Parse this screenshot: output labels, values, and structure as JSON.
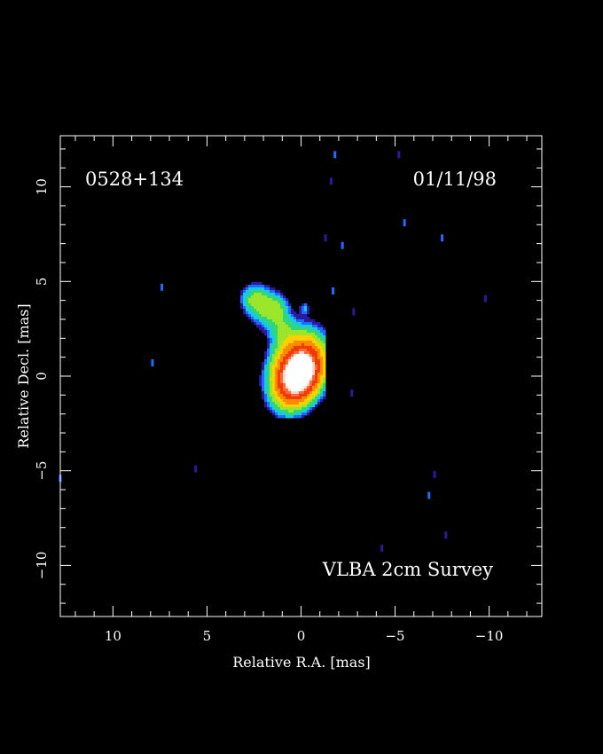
{
  "chart_data": {
    "type": "heatmap",
    "source_name": "0528+134",
    "epoch": "01/11/98",
    "survey_label": "VLBA 2cm Survey",
    "xlabel": "Relative R.A. [mas]",
    "ylabel": "Relative Decl. [mas]",
    "xlim": [
      12.8,
      -12.8
    ],
    "ylim": [
      -12.7,
      12.7
    ],
    "x_ticks": [
      {
        "value": 10,
        "label": "10"
      },
      {
        "value": 5,
        "label": "5"
      },
      {
        "value": 0,
        "label": "0"
      },
      {
        "value": -5,
        "label": "−5"
      },
      {
        "value": -10,
        "label": "−10"
      }
    ],
    "y_ticks": [
      {
        "value": 10,
        "label": "10"
      },
      {
        "value": 5,
        "label": "5"
      },
      {
        "value": 0,
        "label": "0"
      },
      {
        "value": -5,
        "label": "−5"
      },
      {
        "value": -10,
        "label": "−10"
      }
    ],
    "minor_tick_step": 1,
    "grid": false,
    "colors": {
      "background": "#000000",
      "frame": "#ffffff",
      "ramp": [
        "#2a1aa0",
        "#1f6bff",
        "#19c8e8",
        "#2ed87a",
        "#9be62a",
        "#ffd000",
        "#ff8a00",
        "#f03a00",
        "#ff6a3a",
        "#ffd9d0",
        "#ffffff"
      ]
    },
    "source_components": [
      {
        "name": "core",
        "x": 0.05,
        "y": 0.0,
        "sigma_major": 1.05,
        "sigma_minor": 0.72,
        "pa_deg": 25,
        "peak": 1.0
      },
      {
        "name": "core-halo",
        "x": 0.3,
        "y": 0.6,
        "sigma_major": 1.25,
        "sigma_minor": 0.85,
        "pa_deg": 20,
        "peak": 0.55
      },
      {
        "name": "jet-knot-1",
        "x": 1.9,
        "y": 3.6,
        "sigma_major": 0.75,
        "sigma_minor": 0.6,
        "pa_deg": 0,
        "peak": 0.22
      },
      {
        "name": "jet-knot-2",
        "x": 2.6,
        "y": 4.1,
        "sigma_major": 0.55,
        "sigma_minor": 0.5,
        "pa_deg": 0,
        "peak": 0.18
      },
      {
        "name": "jet-knot-3",
        "x": 1.2,
        "y": 3.5,
        "sigma_major": 0.55,
        "sigma_minor": 0.45,
        "pa_deg": 0,
        "peak": 0.15
      },
      {
        "name": "jet-bridge",
        "x": 1.0,
        "y": 2.4,
        "sigma_major": 0.6,
        "sigma_minor": 0.45,
        "pa_deg": 30,
        "peak": 0.13
      },
      {
        "name": "jet-blob",
        "x": -0.2,
        "y": 3.6,
        "sigma_major": 0.25,
        "sigma_minor": 0.2,
        "pa_deg": 0,
        "peak": 0.12
      }
    ],
    "noise_specks": [
      {
        "x": -1.8,
        "y": 11.7,
        "level": 0.1
      },
      {
        "x": -1.6,
        "y": 10.3,
        "level": 0.04
      },
      {
        "x": -5.2,
        "y": 11.7,
        "level": 0.04
      },
      {
        "x": -5.5,
        "y": 8.1,
        "level": 0.1
      },
      {
        "x": -2.2,
        "y": 6.9,
        "level": 0.1
      },
      {
        "x": -1.3,
        "y": 7.3,
        "level": 0.08
      },
      {
        "x": -7.5,
        "y": 7.3,
        "level": 0.1
      },
      {
        "x": -1.7,
        "y": 4.5,
        "level": 0.1
      },
      {
        "x": -2.8,
        "y": 3.4,
        "level": 0.04
      },
      {
        "x": -9.8,
        "y": 4.1,
        "level": 0.08
      },
      {
        "x": 7.4,
        "y": 4.7,
        "level": 0.1
      },
      {
        "x": 7.9,
        "y": 0.7,
        "level": 0.1
      },
      {
        "x": -2.7,
        "y": -0.9,
        "level": 0.08
      },
      {
        "x": 5.6,
        "y": -4.9,
        "level": 0.08
      },
      {
        "x": 12.8,
        "y": -5.4,
        "level": 0.1
      },
      {
        "x": -7.1,
        "y": -5.2,
        "level": 0.08
      },
      {
        "x": -6.8,
        "y": -6.3,
        "level": 0.1
      },
      {
        "x": -7.7,
        "y": -8.4,
        "level": 0.08
      },
      {
        "x": -4.3,
        "y": -9.1,
        "level": 0.04
      }
    ]
  }
}
